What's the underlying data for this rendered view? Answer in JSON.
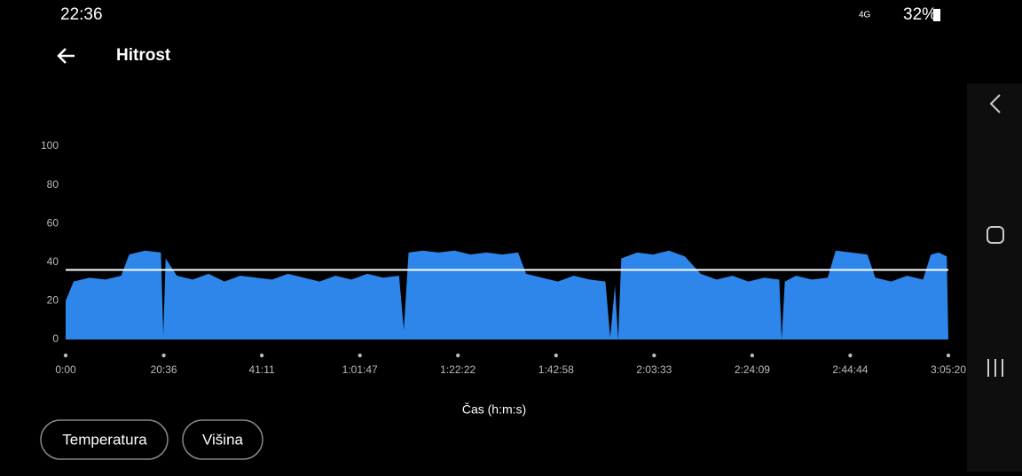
{
  "status_bar": {
    "time": "22:36",
    "network": "4G",
    "battery": "32%"
  },
  "header": {
    "title": "Hitrost"
  },
  "chart_data": {
    "type": "area",
    "x": [
      0,
      100,
      300,
      500,
      700,
      800,
      1000,
      1200,
      1230,
      1260,
      1400,
      1600,
      1800,
      2000,
      2200,
      2400,
      2600,
      2800,
      3000,
      3200,
      3400,
      3600,
      3800,
      4000,
      4200,
      4260,
      4320,
      4500,
      4700,
      4900,
      5100,
      5300,
      5500,
      5700,
      5800,
      6000,
      6200,
      6400,
      6600,
      6800,
      6860,
      6920,
      6960,
      7000,
      7200,
      7400,
      7600,
      7800,
      8000,
      8200,
      8400,
      8600,
      8800,
      8990,
      9020,
      9060,
      9200,
      9400,
      9600,
      9700,
      9900,
      10100,
      10200,
      10400,
      10600,
      10800,
      10900,
      11000,
      11100,
      11120
    ],
    "values": [
      20,
      30,
      32,
      31,
      33,
      44,
      46,
      45,
      2,
      42,
      33,
      31,
      34,
      30,
      33,
      32,
      31,
      34,
      32,
      30,
      33,
      31,
      34,
      32,
      33,
      5,
      45,
      46,
      45,
      46,
      44,
      45,
      44,
      45,
      34,
      32,
      30,
      33,
      31,
      30,
      1,
      28,
      0,
      42,
      45,
      44,
      46,
      43,
      34,
      31,
      33,
      30,
      32,
      31,
      0,
      30,
      33,
      31,
      32,
      46,
      45,
      44,
      32,
      30,
      33,
      31,
      44,
      45,
      43,
      0
    ],
    "color": "#2e86ea",
    "average": 36,
    "average_color": "#ffffff",
    "xlim": [
      0,
      11120
    ],
    "xticks": [
      {
        "value": 0,
        "label": "0:00"
      },
      {
        "value": 1236,
        "label": "20:36"
      },
      {
        "value": 2471,
        "label": "41:11"
      },
      {
        "value": 3707,
        "label": "1:01:47"
      },
      {
        "value": 4942,
        "label": "1:22:22"
      },
      {
        "value": 6178,
        "label": "1:42:58"
      },
      {
        "value": 7413,
        "label": "2:03:33"
      },
      {
        "value": 8649,
        "label": "2:24:09"
      },
      {
        "value": 9884,
        "label": "2:44:44"
      },
      {
        "value": 11120,
        "label": "3:05:20"
      }
    ],
    "ylim": [
      0,
      100
    ],
    "yticks": [
      0,
      20,
      40,
      60,
      80,
      100
    ],
    "x_label": "Čas (h:m:s)"
  },
  "buttons": [
    "Temperatura",
    "Višina"
  ]
}
